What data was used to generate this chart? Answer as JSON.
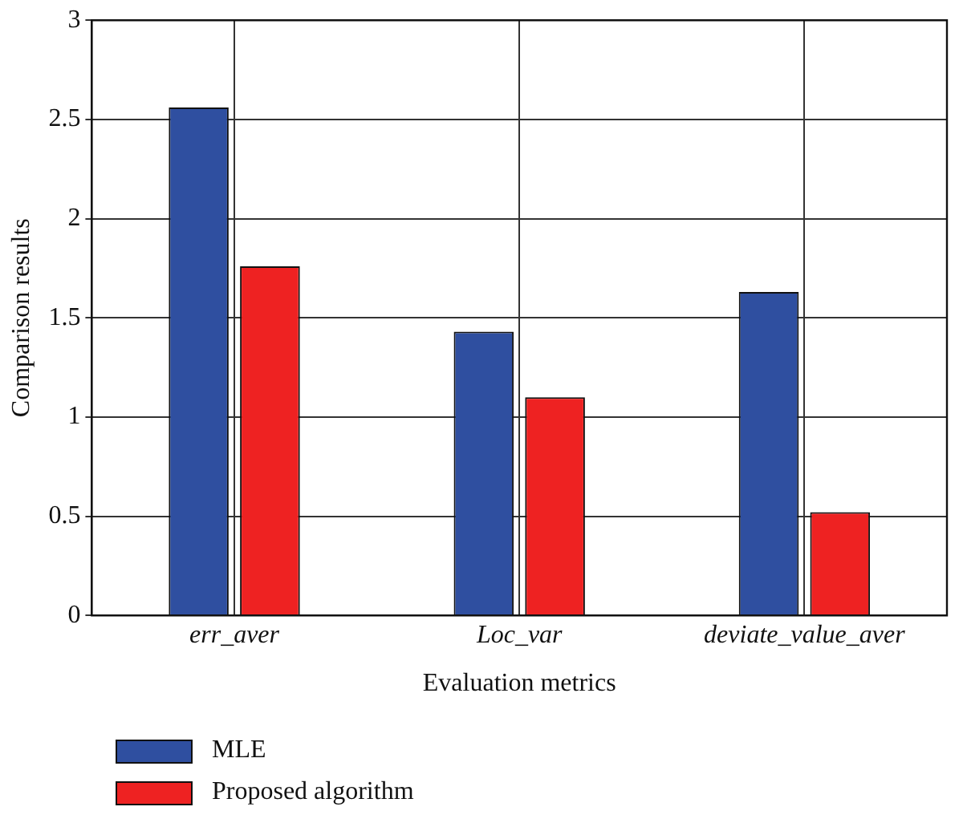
{
  "chart_data": {
    "type": "bar",
    "xlabel": "Evaluation metrics",
    "ylabel": "Comparison results",
    "categories": [
      "err_aver",
      "Loc_var",
      "deviate_value_aver"
    ],
    "series": [
      {
        "name": "MLE",
        "color": "#2f4fa0",
        "values": [
          2.56,
          1.43,
          1.63
        ]
      },
      {
        "name": "Proposed algorithm",
        "color": "#ee2222",
        "values": [
          1.76,
          1.1,
          0.52
        ]
      }
    ],
    "ylim": [
      0,
      3
    ],
    "yticks": [
      0,
      0.5,
      1,
      1.5,
      2,
      2.5,
      3
    ],
    "grid": true,
    "legend": "bottom"
  }
}
